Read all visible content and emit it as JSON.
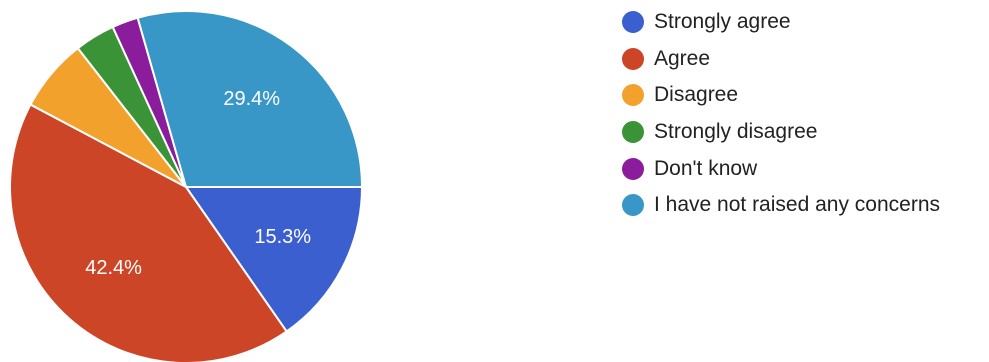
{
  "chart_data": {
    "type": "pie",
    "slices": [
      {
        "label": "Strongly agree",
        "value": 15.3,
        "display": "15.3%",
        "color": "#3b5fcf"
      },
      {
        "label": "Agree",
        "value": 42.4,
        "display": "42.4%",
        "color": "#cc4526"
      },
      {
        "label": "Disagree",
        "value": 6.7,
        "display": "",
        "color": "#f2a22c"
      },
      {
        "label": "Strongly disagree",
        "value": 3.7,
        "display": "",
        "color": "#3a9437"
      },
      {
        "label": "Don't know",
        "value": 2.4,
        "display": "",
        "color": "#8b1c9c"
      },
      {
        "label": "I have not raised any concerns",
        "value": 29.4,
        "display": "29.4%",
        "color": "#3997c8"
      }
    ],
    "legend_position": "right"
  }
}
